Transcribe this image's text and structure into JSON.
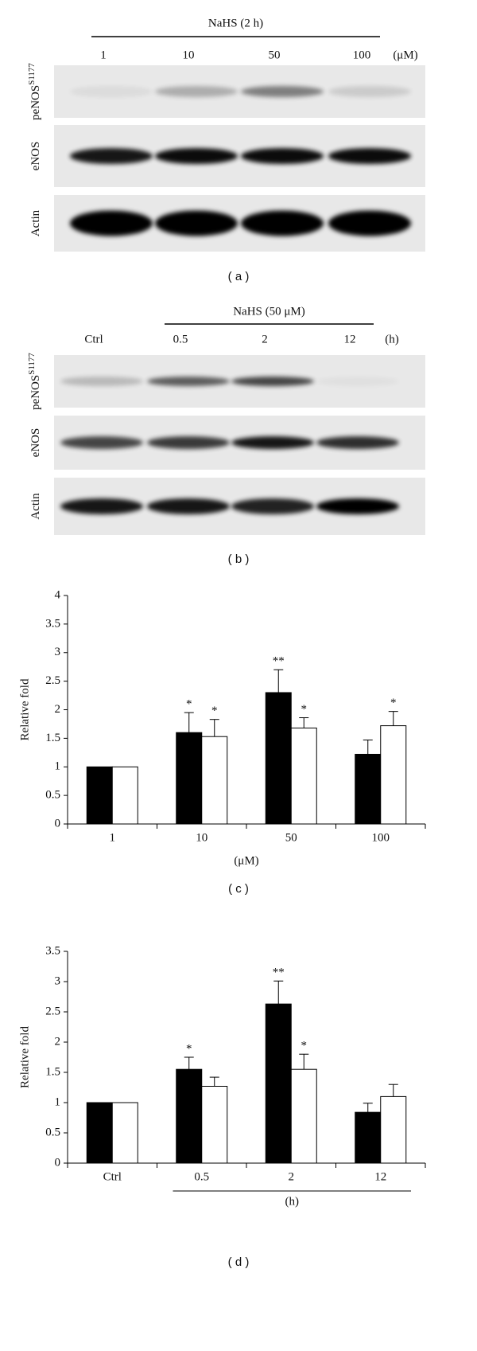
{
  "blots": [
    {
      "header": "NaHS (2 h)",
      "lanes": [
        "1",
        "10",
        "50",
        "100"
      ],
      "unit": "(μM)",
      "rows": [
        {
          "label": "peNOS",
          "sup": "S1177"
        },
        {
          "label": "eNOS"
        },
        {
          "label": "Actin"
        }
      ],
      "caption": "( a )"
    },
    {
      "header": "NaHS (50 μM)",
      "lanes": [
        "Ctrl",
        "0.5",
        "2",
        "12"
      ],
      "unit": "(h)",
      "rows": [
        {
          "label": "peNOS",
          "sup": "S1177"
        },
        {
          "label": "eNOS"
        },
        {
          "label": "Actin"
        }
      ],
      "caption": "( b )"
    }
  ],
  "chart_data": [
    {
      "type": "bar",
      "ylabel": "Relative fold",
      "xlabel": "(μM)",
      "caption": "( c )",
      "categories": [
        "1",
        "10",
        "50",
        "100"
      ],
      "series": [
        {
          "color": "#000000",
          "values": [
            1,
            1.6,
            2.3,
            1.22
          ],
          "errors": [
            null,
            0.35,
            0.4,
            0.25
          ],
          "annotations": [
            null,
            "*",
            "**",
            null
          ]
        },
        {
          "color": "#ffffff",
          "values": [
            1,
            1.53,
            1.68,
            1.72
          ],
          "errors": [
            null,
            0.3,
            0.18,
            0.25
          ],
          "annotations": [
            null,
            "*",
            "*",
            "*"
          ]
        }
      ],
      "ylim": [
        0,
        4
      ],
      "yticks": [
        0,
        0.5,
        1,
        1.5,
        2,
        2.5,
        3,
        3.5,
        4
      ]
    },
    {
      "type": "bar",
      "ylabel": "Relative fold",
      "xlabel": "(h)",
      "caption": "( d )",
      "categories": [
        "Ctrl",
        "0.5",
        "2",
        "12"
      ],
      "series": [
        {
          "color": "#000000",
          "values": [
            1,
            1.55,
            2.63,
            0.84
          ],
          "errors": [
            null,
            0.2,
            0.38,
            0.15
          ],
          "annotations": [
            null,
            "*",
            "**",
            null
          ]
        },
        {
          "color": "#ffffff",
          "values": [
            1,
            1.27,
            1.55,
            1.1
          ],
          "errors": [
            null,
            0.15,
            0.25,
            0.2
          ],
          "annotations": [
            null,
            null,
            "*",
            null
          ]
        }
      ],
      "ylim": [
        0,
        3.5
      ],
      "yticks": [
        0,
        0.5,
        1,
        1.5,
        2,
        2.5,
        3,
        3.5
      ]
    }
  ]
}
